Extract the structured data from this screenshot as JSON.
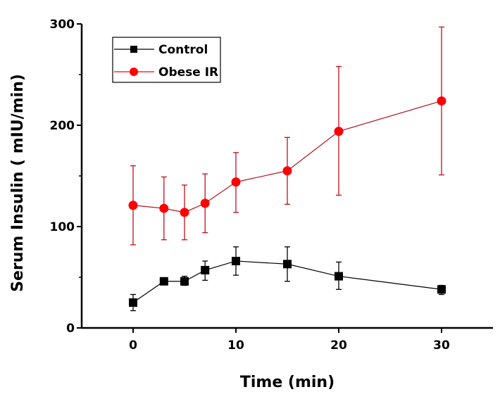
{
  "chart_data": {
    "type": "line",
    "title": "",
    "xlabel": "Time (min)",
    "ylabel": "Serum Insulin ( mIU/min)",
    "xlim": [
      -5,
      35
    ],
    "ylim": [
      0,
      300
    ],
    "xticks": [
      0,
      10,
      20,
      30
    ],
    "yticks": [
      0,
      100,
      200,
      300
    ],
    "xtick_labels": [
      "0",
      "10",
      "20",
      "30"
    ],
    "ytick_labels": [
      "0",
      "100",
      "200",
      "300"
    ],
    "grid": false,
    "legend_position": "top-left",
    "x": [
      0,
      3,
      5,
      7,
      10,
      15,
      20,
      30
    ],
    "series": [
      {
        "name": "Control",
        "color": "#000000",
        "marker": "square",
        "values": [
          25,
          46,
          46,
          57,
          66,
          63,
          51,
          38
        ],
        "err_low": [
          17,
          43,
          42,
          47,
          52,
          46,
          38,
          33
        ],
        "err_high": [
          33,
          49,
          51,
          66,
          80,
          80,
          65,
          42
        ]
      },
      {
        "name": "Obese IR",
        "color": "#ff0000",
        "marker": "circle",
        "values": [
          121,
          118,
          114,
          123,
          144,
          155,
          194,
          224
        ],
        "err_low": [
          82,
          87,
          87,
          94,
          114,
          122,
          131,
          151
        ],
        "err_high": [
          160,
          149,
          141,
          152,
          173,
          188,
          258,
          297
        ]
      }
    ]
  }
}
